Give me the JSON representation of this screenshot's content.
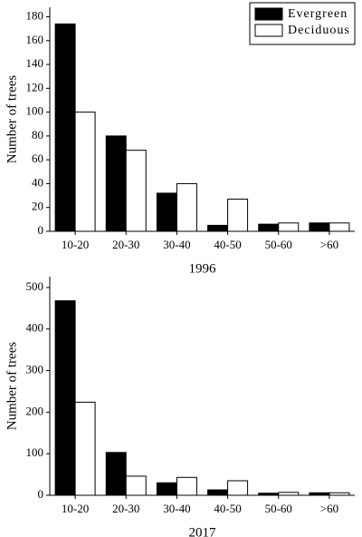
{
  "chart_data": [
    {
      "type": "bar",
      "xlabel": "1996",
      "ylabel": "Number of trees",
      "categories": [
        "10-20",
        "20-30",
        "30-40",
        "40-50",
        "50-60",
        ">60"
      ],
      "series": [
        {
          "name": "Evergreen",
          "color": "#000000",
          "values": [
            174,
            80,
            32,
            5,
            6,
            7
          ]
        },
        {
          "name": "Deciduous",
          "color": "#ffffff",
          "values": [
            100,
            68,
            40,
            27,
            7,
            7
          ]
        }
      ],
      "ylim": [
        0,
        188
      ],
      "yticks": [
        0,
        20,
        40,
        60,
        80,
        100,
        120,
        140,
        160,
        180
      ],
      "legend": "upper right"
    },
    {
      "type": "bar",
      "xlabel": "2017",
      "ylabel": "Number of trees",
      "categories": [
        "10-20",
        "20-30",
        "30-40",
        "40-50",
        "50-60",
        ">60"
      ],
      "series": [
        {
          "color": "#000000",
          "values": [
            468,
            103,
            30,
            13,
            5,
            6
          ]
        },
        {
          "color": "#ffffff",
          "values": [
            224,
            46,
            43,
            35,
            7,
            6
          ]
        }
      ],
      "ylim": [
        0,
        526
      ],
      "yticks": [
        0,
        100,
        200,
        300,
        400,
        500
      ]
    }
  ]
}
